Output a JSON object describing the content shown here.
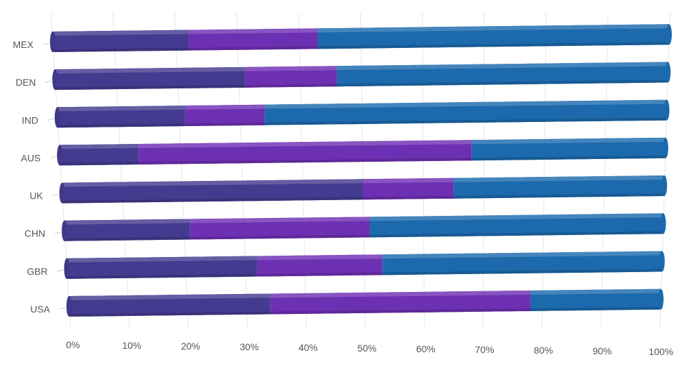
{
  "chart_data": {
    "type": "bar",
    "orientation": "horizontal",
    "stacked": "percent",
    "style": "3d-cylinder",
    "grid": true,
    "legend": "none",
    "title": "",
    "xlabel": "",
    "ylabel": "",
    "categories": [
      "MEX",
      "DEN",
      "IND",
      "AUS",
      "UK",
      "CHN",
      "GBR",
      "USA"
    ],
    "series": [
      {
        "color": "#433b8f",
        "values": [
          22,
          31,
          21,
          13,
          50,
          21,
          32,
          34
        ]
      },
      {
        "color": "#6e30b3",
        "values": [
          21,
          15,
          13,
          55,
          15,
          30,
          21,
          44
        ]
      },
      {
        "color": "#1c6aad",
        "values": [
          57,
          54,
          66,
          32,
          35,
          49,
          47,
          22
        ]
      }
    ],
    "xlim": [
      0,
      100
    ],
    "xticks": [
      "0%",
      "10%",
      "20%",
      "30%",
      "40%",
      "50%",
      "60%",
      "70%",
      "80%",
      "90%",
      "100%"
    ]
  }
}
